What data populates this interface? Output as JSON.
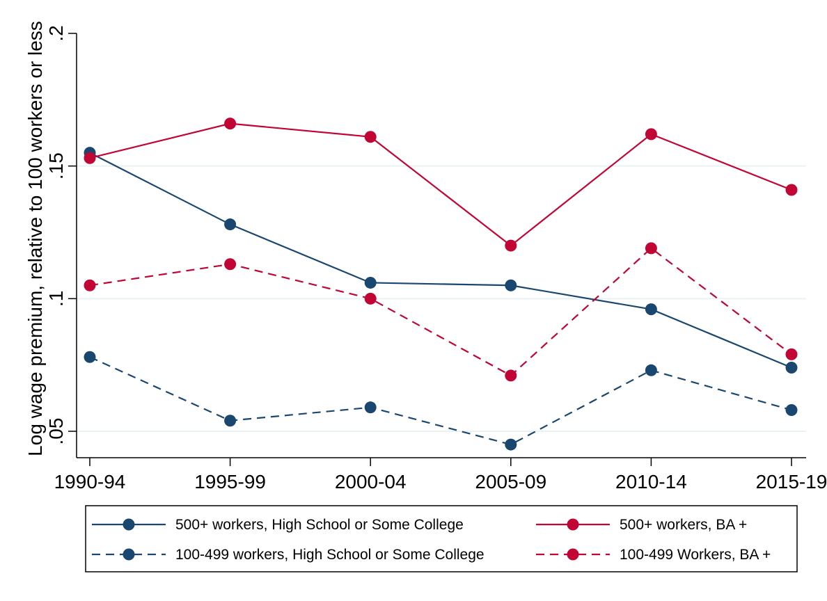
{
  "chart_data": {
    "type": "line",
    "categories": [
      "1990-94",
      "1995-99",
      "2000-04",
      "2005-09",
      "2010-14",
      "2015-19"
    ],
    "ylabel": "Log wage premium, relative to 100 workers or less",
    "xlabel": "",
    "ylim": [
      0.04,
      0.2
    ],
    "yticks": [
      0.05,
      0.1,
      0.15,
      0.2
    ],
    "ytick_labels": [
      ".05",
      ".1",
      ".15",
      ".2"
    ],
    "grid": true,
    "legend_position": "bottom",
    "series": [
      {
        "name": "500+ workers, High School or Some College",
        "color": "#1a476f",
        "dash": "solid",
        "values": [
          0.155,
          0.128,
          0.106,
          0.105,
          0.096,
          0.074
        ]
      },
      {
        "name": "500+ workers, BA +",
        "color": "#c10534",
        "dash": "solid",
        "values": [
          0.153,
          0.166,
          0.161,
          0.12,
          0.162,
          0.141
        ]
      },
      {
        "name": "100-499 workers, High School or Some College",
        "color": "#1a476f",
        "dash": "dashed",
        "values": [
          0.078,
          0.054,
          0.059,
          0.045,
          0.073,
          0.058
        ]
      },
      {
        "name": "100-499 Workers, BA +",
        "color": "#c10534",
        "dash": "dashed",
        "values": [
          0.105,
          0.113,
          0.1,
          0.071,
          0.119,
          0.079
        ]
      }
    ]
  }
}
